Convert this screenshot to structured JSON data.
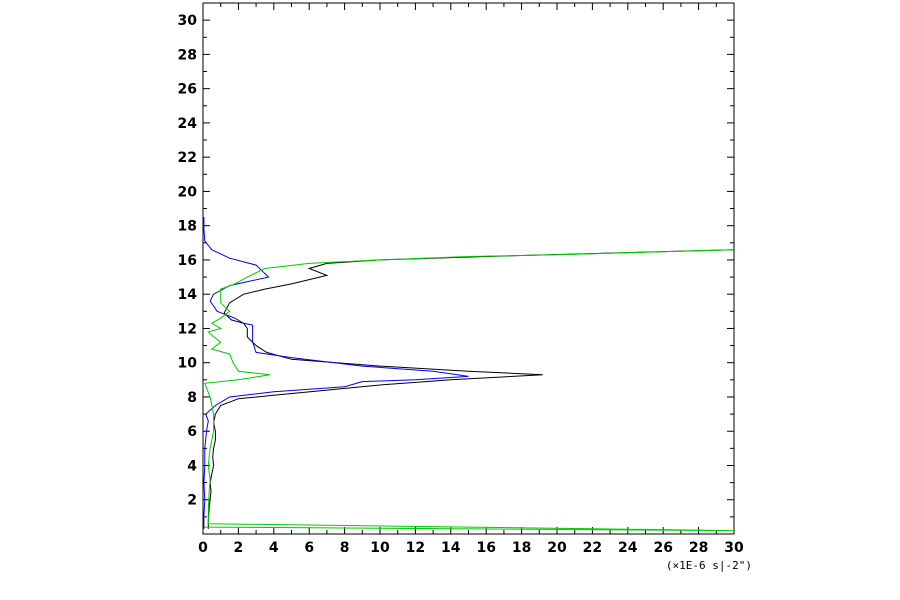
{
  "chart_data": {
    "type": "line",
    "title": "",
    "xlabel": "",
    "ylabel": "",
    "x_units_label": "(×1E-6 s|-2\")",
    "xlim": [
      0,
      30
    ],
    "ylim": [
      0,
      31
    ],
    "x_ticks": [
      0,
      2,
      4,
      6,
      8,
      10,
      12,
      14,
      16,
      18,
      20,
      22,
      24,
      26,
      28,
      30
    ],
    "y_ticks": [
      2,
      4,
      6,
      8,
      10,
      12,
      14,
      16,
      18,
      20,
      22,
      24,
      26,
      28,
      30
    ],
    "grid": false,
    "legend": "none",
    "series": [
      {
        "color": "#000000",
        "points": [
          [
            0.3,
            0.3
          ],
          [
            0.3,
            0.8
          ],
          [
            0.35,
            1.5
          ],
          [
            0.4,
            2.0
          ],
          [
            0.45,
            2.5
          ],
          [
            0.4,
            3.0
          ],
          [
            0.5,
            3.5
          ],
          [
            0.6,
            4.0
          ],
          [
            0.55,
            4.5
          ],
          [
            0.6,
            5.0
          ],
          [
            0.7,
            5.5
          ],
          [
            0.7,
            6.0
          ],
          [
            0.6,
            6.5
          ],
          [
            0.7,
            7.0
          ],
          [
            1.0,
            7.5
          ],
          [
            2.0,
            7.9
          ],
          [
            4.0,
            8.1
          ],
          [
            7.0,
            8.4
          ],
          [
            10.0,
            8.7
          ],
          [
            14.0,
            9.0
          ],
          [
            19.2,
            9.3
          ],
          [
            15.0,
            9.5
          ],
          [
            10.0,
            9.8
          ],
          [
            5.0,
            10.2
          ],
          [
            3.6,
            10.6
          ],
          [
            3.0,
            11.0
          ],
          [
            2.5,
            11.5
          ],
          [
            2.5,
            12.0
          ],
          [
            2.3,
            12.3
          ],
          [
            1.6,
            12.5
          ],
          [
            1.2,
            12.9
          ],
          [
            1.5,
            13.5
          ],
          [
            2.3,
            14.0
          ],
          [
            3.5,
            14.3
          ],
          [
            5.0,
            14.6
          ],
          [
            7.0,
            15.1
          ],
          [
            6.0,
            15.5
          ],
          [
            7.0,
            15.8
          ],
          [
            10.0,
            16.0
          ],
          [
            16.0,
            16.2
          ],
          [
            30.0,
            16.6
          ]
        ]
      },
      {
        "color": "#0000ff",
        "points": [
          [
            0.05,
            0.3
          ],
          [
            0.05,
            1.0
          ],
          [
            0.1,
            2.0
          ],
          [
            0.05,
            3.0
          ],
          [
            0.1,
            4.0
          ],
          [
            0.1,
            5.0
          ],
          [
            0.2,
            6.0
          ],
          [
            0.3,
            6.6
          ],
          [
            0.15,
            7.0
          ],
          [
            0.7,
            7.5
          ],
          [
            1.5,
            8.0
          ],
          [
            4.0,
            8.3
          ],
          [
            8.0,
            8.6
          ],
          [
            9.0,
            8.9
          ],
          [
            12.0,
            9.0
          ],
          [
            15.0,
            9.2
          ],
          [
            13.0,
            9.5
          ],
          [
            9.0,
            9.8
          ],
          [
            5.0,
            10.3
          ],
          [
            3.0,
            10.6
          ],
          [
            2.8,
            11.2
          ],
          [
            2.8,
            12.2
          ],
          [
            2.3,
            12.3
          ],
          [
            1.8,
            12.6
          ],
          [
            0.8,
            13.0
          ],
          [
            0.4,
            13.6
          ],
          [
            0.6,
            14.0
          ],
          [
            1.5,
            14.5
          ],
          [
            3.7,
            15.0
          ],
          [
            3.3,
            15.4
          ],
          [
            3.0,
            15.7
          ],
          [
            1.5,
            16.1
          ],
          [
            0.5,
            16.6
          ],
          [
            0.1,
            17.1
          ],
          [
            0.05,
            17.8
          ],
          [
            0.05,
            18.5
          ]
        ]
      },
      {
        "color": "#00cc00",
        "points": [
          [
            0.05,
            0.4
          ],
          [
            30.0,
            0.2
          ],
          [
            0.3,
            0.6
          ],
          [
            0.3,
            1.5
          ],
          [
            0.35,
            2.5
          ],
          [
            0.4,
            3.2
          ],
          [
            0.3,
            4.0
          ],
          [
            0.4,
            5.0
          ],
          [
            0.6,
            6.0
          ],
          [
            0.6,
            7.0
          ],
          [
            0.4,
            8.0
          ],
          [
            0.1,
            8.8
          ],
          [
            2.0,
            9.0
          ],
          [
            3.8,
            9.3
          ],
          [
            2.0,
            9.5
          ],
          [
            1.7,
            10.0
          ],
          [
            1.5,
            10.5
          ],
          [
            0.5,
            10.8
          ],
          [
            1.0,
            11.2
          ],
          [
            0.5,
            11.6
          ],
          [
            0.3,
            11.8
          ],
          [
            1.0,
            12.0
          ],
          [
            0.5,
            12.3
          ],
          [
            1.0,
            12.6
          ],
          [
            1.5,
            13.0
          ],
          [
            1.0,
            13.5
          ],
          [
            1.0,
            14.0
          ],
          [
            1.0,
            14.3
          ],
          [
            1.8,
            14.6
          ],
          [
            2.5,
            15.0
          ],
          [
            3.5,
            15.5
          ],
          [
            6.0,
            15.8
          ],
          [
            10.0,
            16.0
          ],
          [
            15.0,
            16.2
          ],
          [
            20.0,
            16.3
          ],
          [
            30.0,
            16.6
          ]
        ]
      }
    ]
  }
}
